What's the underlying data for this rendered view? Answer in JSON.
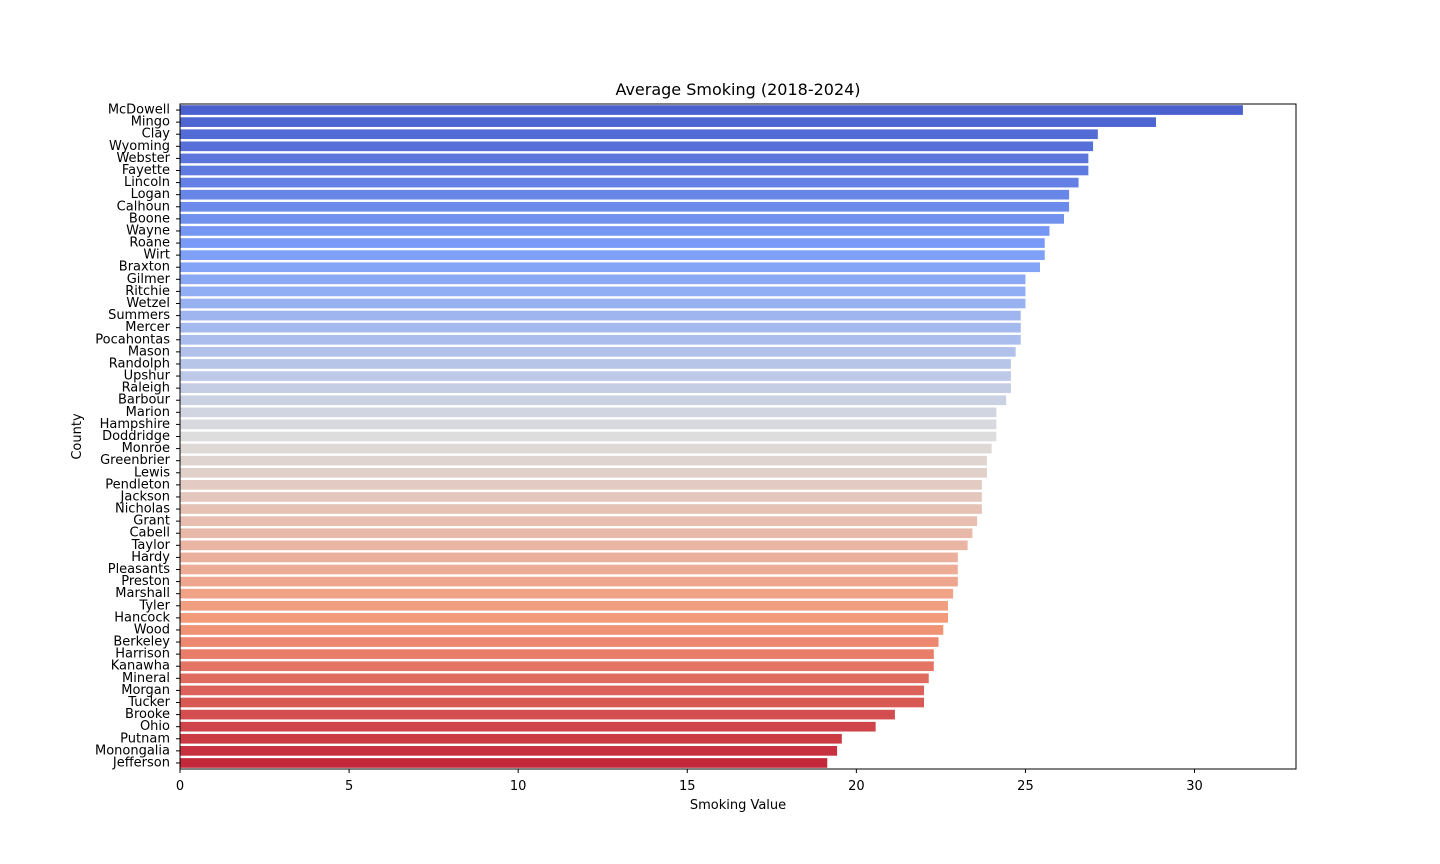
{
  "chart_data": {
    "type": "bar",
    "orientation": "horizontal",
    "title": "Average Smoking (2018-2024)",
    "xlabel": "Smoking Value",
    "ylabel": "County",
    "xlim": [
      0,
      33
    ],
    "xticks": [
      0,
      5,
      10,
      15,
      20,
      25,
      30
    ],
    "grid": false,
    "palette": "coolwarm",
    "categories": [
      "McDowell",
      "Mingo",
      "Clay",
      "Wyoming",
      "Webster",
      "Fayette",
      "Lincoln",
      "Logan",
      "Calhoun",
      "Boone",
      "Wayne",
      "Roane",
      "Wirt",
      "Braxton",
      "Gilmer",
      "Ritchie",
      "Wetzel",
      "Summers",
      "Mercer",
      "Pocahontas",
      "Mason",
      "Randolph",
      "Upshur",
      "Raleigh",
      "Barbour",
      "Marion",
      "Hampshire",
      "Doddridge",
      "Monroe",
      "Greenbrier",
      "Lewis",
      "Pendleton",
      "Jackson",
      "Nicholas",
      "Grant",
      "Cabell",
      "Taylor",
      "Hardy",
      "Pleasants",
      "Preston",
      "Marshall",
      "Tyler",
      "Hancock",
      "Wood",
      "Berkeley",
      "Harrison",
      "Kanawha",
      "Mineral",
      "Morgan",
      "Tucker",
      "Brooke",
      "Ohio",
      "Putnam",
      "Monongalia",
      "Jefferson"
    ],
    "values": [
      31.43,
      28.86,
      27.14,
      27.0,
      26.86,
      26.86,
      26.57,
      26.29,
      26.29,
      26.14,
      25.71,
      25.57,
      25.57,
      25.43,
      25.0,
      25.0,
      25.0,
      24.86,
      24.86,
      24.86,
      24.71,
      24.57,
      24.57,
      24.57,
      24.43,
      24.14,
      24.14,
      24.14,
      24.0,
      23.86,
      23.86,
      23.71,
      23.71,
      23.71,
      23.57,
      23.43,
      23.29,
      23.0,
      23.0,
      23.0,
      22.86,
      22.71,
      22.71,
      22.57,
      22.43,
      22.29,
      22.29,
      22.14,
      22.0,
      22.0,
      21.14,
      20.57,
      19.57,
      19.43,
      19.14
    ]
  }
}
